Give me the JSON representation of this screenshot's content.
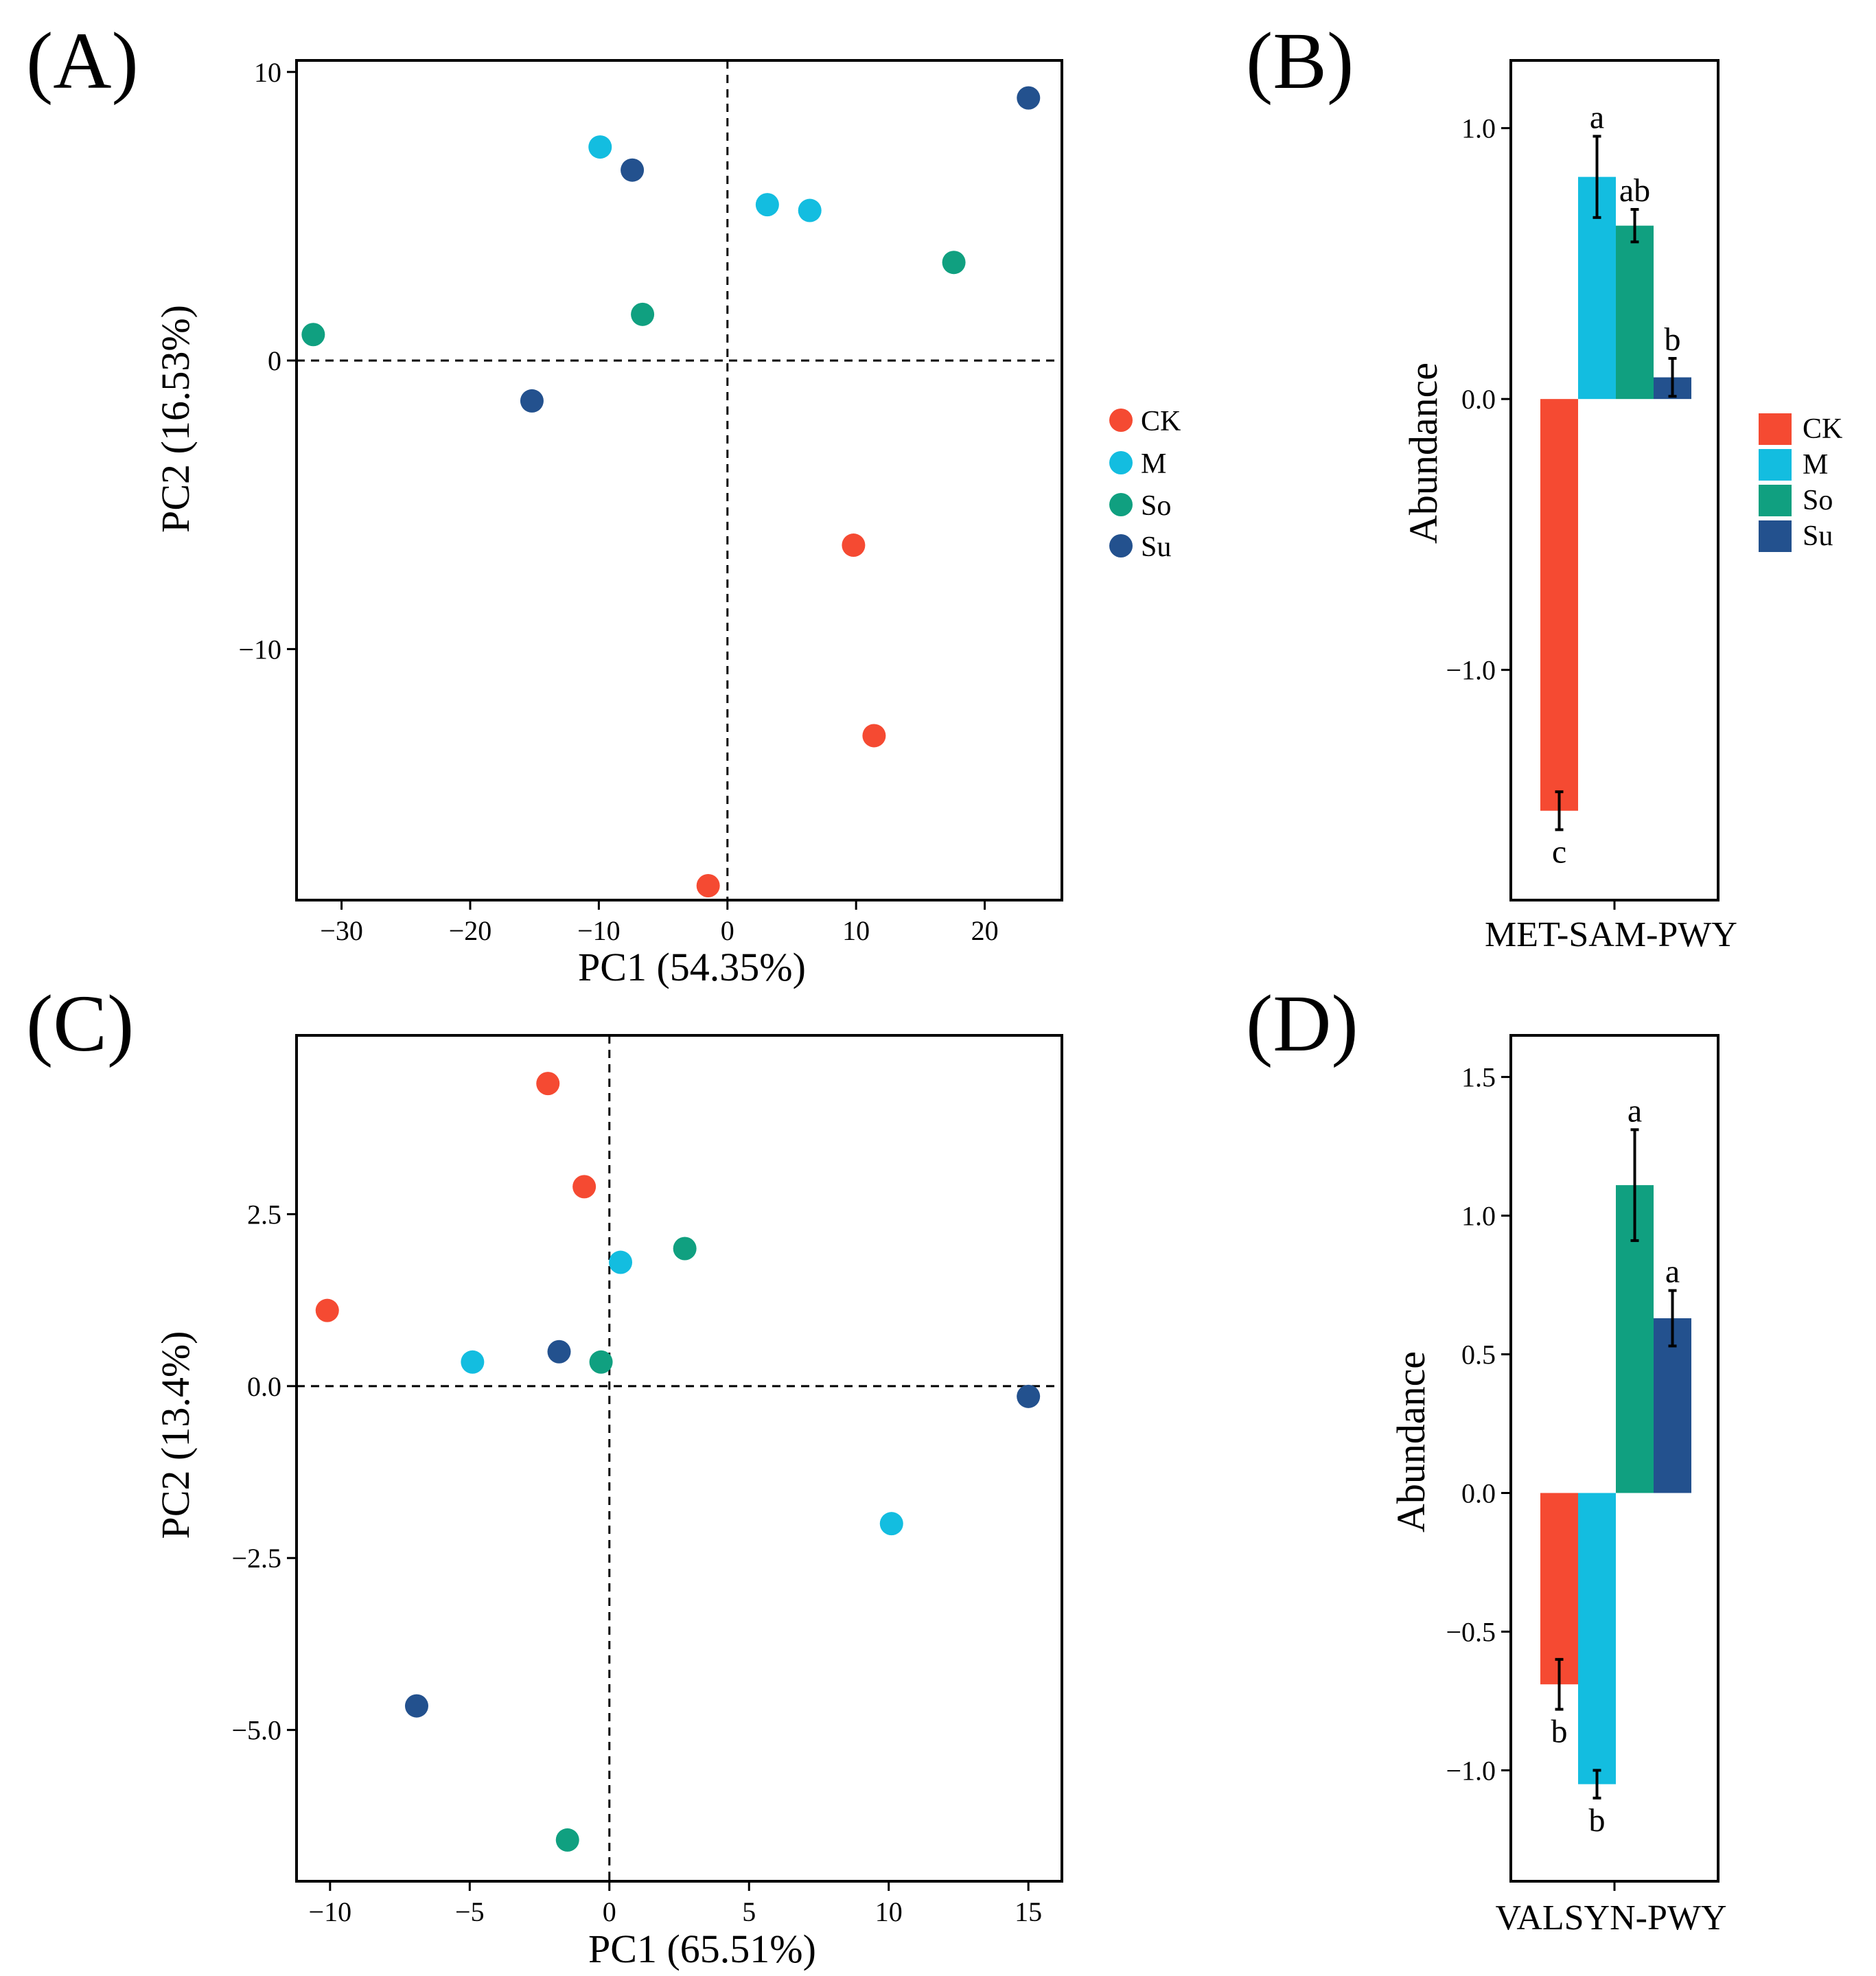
{
  "figure": {
    "colors": {
      "CK": "#f54a32",
      "M": "#13bde0",
      "So": "#10a080",
      "Su": "#23518e"
    },
    "groups": [
      "CK",
      "M",
      "So",
      "Su"
    ]
  },
  "chart_data": [
    {
      "panel": "(A)",
      "type": "scatter",
      "xlabel": "PC1 (54.35%)",
      "ylabel": "PC2 (16.53%)",
      "xlim": [
        -33.5,
        26
      ],
      "ylim": [
        -18.7,
        10.4
      ],
      "xticks": [
        -30,
        -20,
        -10,
        0,
        10,
        20
      ],
      "xtick_labels": [
        "−30",
        "−20",
        "−10",
        "0",
        "10",
        "20"
      ],
      "yticks": [
        -10,
        0,
        10
      ],
      "ytick_labels": [
        "−10",
        "0",
        "10"
      ],
      "reference_lines": {
        "x": 0,
        "y": 0
      },
      "legend": [
        "CK",
        "M",
        "So",
        "Su"
      ],
      "series": [
        {
          "name": "CK",
          "points": [
            [
              9.8,
              -6.4
            ],
            [
              11.4,
              -13.0
            ],
            [
              -1.5,
              -18.2
            ]
          ]
        },
        {
          "name": "M",
          "points": [
            [
              -9.9,
              7.4
            ],
            [
              3.1,
              5.4
            ],
            [
              6.4,
              5.2
            ]
          ]
        },
        {
          "name": "So",
          "points": [
            [
              -32.2,
              0.9
            ],
            [
              -6.6,
              1.6
            ],
            [
              17.6,
              3.4
            ]
          ]
        },
        {
          "name": "Su",
          "points": [
            [
              -7.4,
              6.6
            ],
            [
              -15.2,
              -1.4
            ],
            [
              23.4,
              9.1
            ]
          ]
        }
      ]
    },
    {
      "panel": "(B)",
      "type": "bar",
      "categories": [
        "MET-SAM-PWY"
      ],
      "xlabel": "MET-SAM-PWY",
      "ylabel": "Abundance",
      "ylim": [
        -1.85,
        1.25
      ],
      "yticks": [
        -1.0,
        0.0,
        1.0
      ],
      "ytick_labels": [
        "−1.0",
        "0.0",
        "1.0"
      ],
      "legend": [
        "CK",
        "M",
        "So",
        "Su"
      ],
      "series": [
        {
          "name": "CK",
          "values": [
            -1.52
          ],
          "error": [
            0.07
          ],
          "label": "c"
        },
        {
          "name": "M",
          "values": [
            0.82
          ],
          "error": [
            0.15
          ],
          "label": "a"
        },
        {
          "name": "So",
          "values": [
            0.64
          ],
          "error": [
            0.06
          ],
          "label": "ab"
        },
        {
          "name": "Su",
          "values": [
            0.08
          ],
          "error": [
            0.07
          ],
          "label": "b"
        }
      ]
    },
    {
      "panel": "(C)",
      "type": "scatter",
      "xlabel": "PC1 (65.51%)",
      "ylabel": "PC2 (13.4%)",
      "xlim": [
        -11.2,
        16.2
      ],
      "ylim": [
        -7.2,
        5.1
      ],
      "xticks": [
        -10,
        -5,
        0,
        5,
        10,
        15
      ],
      "xtick_labels": [
        "−10",
        "−5",
        "0",
        "5",
        "10",
        "15"
      ],
      "yticks": [
        -5.0,
        -2.5,
        0.0,
        2.5
      ],
      "ytick_labels": [
        "−5.0",
        "−2.5",
        "0.0",
        "2.5"
      ],
      "reference_lines": {
        "x": 0,
        "y": 0
      },
      "series": [
        {
          "name": "CK",
          "points": [
            [
              -2.2,
              4.4
            ],
            [
              -0.9,
              2.9
            ],
            [
              -10.1,
              1.1
            ]
          ]
        },
        {
          "name": "M",
          "points": [
            [
              0.4,
              1.8
            ],
            [
              -4.9,
              0.35
            ],
            [
              10.1,
              -2.0
            ]
          ]
        },
        {
          "name": "So",
          "points": [
            [
              2.7,
              2.0
            ],
            [
              -0.3,
              0.35
            ],
            [
              -1.5,
              -6.6
            ]
          ]
        },
        {
          "name": "Su",
          "points": [
            [
              -1.8,
              0.5
            ],
            [
              15.0,
              -0.15
            ],
            [
              -6.9,
              -4.65
            ]
          ]
        }
      ]
    },
    {
      "panel": "(D)",
      "type": "bar",
      "categories": [
        "VALSYN-PWY"
      ],
      "xlabel": "VALSYN-PWY",
      "ylabel": "Abundance",
      "ylim": [
        -1.4,
        1.65
      ],
      "yticks": [
        -1.0,
        -0.5,
        0.0,
        0.5,
        1.0,
        1.5
      ],
      "ytick_labels": [
        "−1.0",
        "−0.5",
        "0.0",
        "0.5",
        "1.0",
        "1.5"
      ],
      "series": [
        {
          "name": "CK",
          "values": [
            -0.69
          ],
          "error": [
            0.09
          ],
          "label": "b"
        },
        {
          "name": "M",
          "values": [
            -1.05
          ],
          "error": [
            0.05
          ],
          "label": "b"
        },
        {
          "name": "So",
          "values": [
            1.11
          ],
          "error": [
            0.2
          ],
          "label": "a"
        },
        {
          "name": "Su",
          "values": [
            0.63
          ],
          "error": [
            0.1
          ],
          "label": "a"
        }
      ]
    }
  ]
}
